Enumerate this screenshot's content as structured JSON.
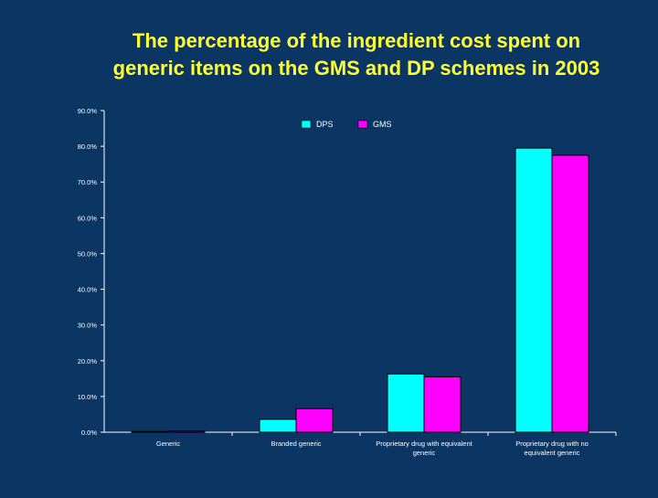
{
  "slide": {
    "title_line1": "The percentage of the ingredient cost spent on",
    "title_line2": "generic items on the GMS and DP schemes in 2003",
    "background": "#0b3563",
    "title_color": "#ffff33"
  },
  "chart_data": {
    "type": "bar",
    "title": "The percentage of the ingredient cost spent on generic items on the GMS and DP schemes in 2003",
    "xlabel": "",
    "ylabel": "",
    "categories": [
      [
        "Generic"
      ],
      [
        "Branded generic"
      ],
      [
        "Proprietary drug with equivalent",
        "generic"
      ],
      [
        "Proprietary drug with no",
        "equivalent generic"
      ]
    ],
    "series": [
      {
        "name": "DPS",
        "values": [
          0.2,
          3.6,
          16.3,
          79.5
        ],
        "color": "#00ffff"
      },
      {
        "name": "GMS",
        "values": [
          0.3,
          6.6,
          15.5,
          77.5
        ],
        "color": "#ff00ff"
      }
    ],
    "ylim": [
      0,
      90
    ],
    "yticks": [
      "0.0%",
      "10.0%",
      "20.0%",
      "30.0%",
      "40.0%",
      "50.0%",
      "60.0%",
      "70.0%",
      "80.0%",
      "90.0%"
    ],
    "grid": false,
    "legend_position": "top-center"
  }
}
